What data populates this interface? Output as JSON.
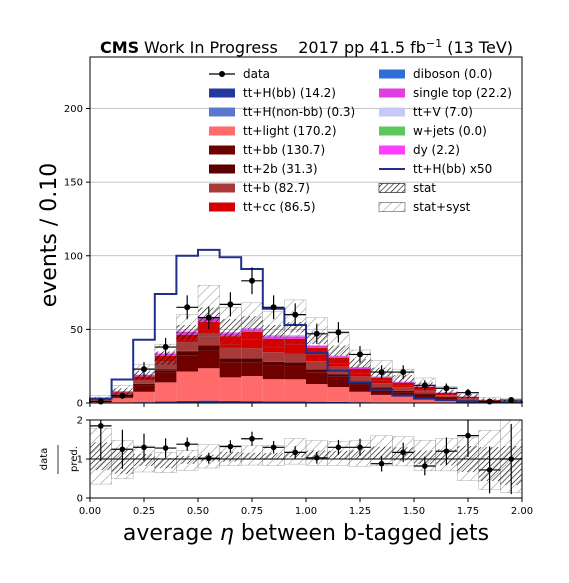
{
  "header": {
    "cms": "CMS",
    "wip": "Work In Progress",
    "lumi_prefix": "2017 pp 41.5 fb",
    "lumi_sup": "−1",
    "lumi_suffix": " (13 TeV)"
  },
  "chart_data": {
    "type": "bar",
    "xlabel_pre": "average ",
    "xlabel_eta": "η",
    "xlabel_post": " between b-tagged jets",
    "ylabel": "events / 0.10",
    "ratio_ylabel_top": "data",
    "ratio_ylabel_bottom": "pred.",
    "xlim": [
      0,
      2
    ],
    "ylim": [
      0,
      235
    ],
    "ratio_ylim": [
      0,
      2
    ],
    "xticks": [
      "0.00",
      "0.25",
      "0.50",
      "0.75",
      "1.00",
      "1.25",
      "1.50",
      "1.75",
      "2.00"
    ],
    "yticks": [
      "0",
      "50",
      "100",
      "150",
      "200"
    ],
    "ratio_yticks": [
      "0",
      "1",
      "2"
    ],
    "bin_edges": [
      0.0,
      0.1,
      0.2,
      0.3,
      0.4,
      0.5,
      0.6,
      0.7,
      0.8,
      0.9,
      1.0,
      1.1,
      1.2,
      1.3,
      1.4,
      1.5,
      1.6,
      1.7,
      1.8,
      1.9,
      2.0
    ],
    "stack": [
      {
        "name": "tt+H(bb) (14.2)",
        "color": "#2339a0",
        "values": [
          0.1,
          0.3,
          0.6,
          1.0,
          1.4,
          1.6,
          1.4,
          1.3,
          1.2,
          1.1,
          0.9,
          0.8,
          0.6,
          0.5,
          0.4,
          0.3,
          0.2,
          0.2,
          0.1,
          0.1
        ]
      },
      {
        "name": "tt+H(non-bb) (0.3)",
        "color": "#5a78d0",
        "values": [
          0,
          0,
          0,
          0,
          0,
          0,
          0,
          0,
          0,
          0,
          0,
          0,
          0,
          0,
          0,
          0,
          0,
          0,
          0,
          0
        ]
      },
      {
        "name": "tt+light (170.2)",
        "color": "#ff6b6b",
        "values": [
          1,
          3,
          7,
          13,
          20,
          22,
          16,
          17,
          15,
          15,
          12,
          10,
          7,
          5,
          4,
          3,
          2,
          1,
          0.5,
          0.3
        ]
      },
      {
        "name": "tt+bb (130.7)",
        "color": "#6e0000",
        "values": [
          0.5,
          1.5,
          4,
          7,
          11,
          12,
          10,
          9,
          9,
          9,
          8,
          7,
          5,
          4,
          3,
          2.5,
          1.5,
          1,
          0.5,
          0.3
        ]
      },
      {
        "name": "tt+2b (31.3)",
        "color": "#5a0000",
        "values": [
          0.2,
          0.5,
          1.5,
          2,
          3,
          3.5,
          3,
          3,
          2.8,
          2.5,
          2,
          1.8,
          1.5,
          1,
          0.8,
          0.6,
          0.4,
          0.2,
          0.1,
          0.1
        ]
      },
      {
        "name": "tt+b (82.7)",
        "color": "#a83a3a",
        "values": [
          0.3,
          1,
          2.5,
          5,
          6,
          8,
          7,
          7,
          6.5,
          6,
          5.5,
          5,
          4,
          3,
          2.5,
          2,
          1.2,
          0.8,
          0.4,
          0.2
        ]
      },
      {
        "name": "tt+cc (86.5)",
        "color": "#d60000",
        "values": [
          0.4,
          1,
          2.5,
          4,
          5,
          8,
          8,
          11,
          9,
          10,
          9,
          6,
          5,
          3.5,
          3,
          2.5,
          1.5,
          1,
          0.5,
          0.3
        ]
      },
      {
        "name": "diboson (0.0)",
        "color": "#2d6fd6",
        "values": [
          0,
          0,
          0,
          0,
          0,
          0,
          0,
          0,
          0,
          0,
          0,
          0,
          0,
          0,
          0,
          0,
          0,
          0,
          0,
          0
        ]
      },
      {
        "name": "single top (22.2)",
        "color": "#e23ce2",
        "values": [
          0.2,
          0.5,
          1,
          1.5,
          2,
          2.5,
          2,
          1.8,
          1.8,
          1.7,
          1.5,
          1.2,
          1,
          0.8,
          0.6,
          0.4,
          0.3,
          0.2,
          0.1,
          0.1
        ]
      },
      {
        "name": "tt+V (7.0)",
        "color": "#c8c8f5",
        "values": [
          0.1,
          0.2,
          0.3,
          0.4,
          0.5,
          0.6,
          0.6,
          0.6,
          0.5,
          0.5,
          0.4,
          0.4,
          0.3,
          0.3,
          0.2,
          0.2,
          0.1,
          0.1,
          0.1,
          0.1
        ]
      },
      {
        "name": "w+jets (0.0)",
        "color": "#5cc85c",
        "values": [
          0,
          0,
          0,
          0,
          0,
          0,
          0,
          0,
          0,
          0,
          0,
          0,
          0,
          0,
          0,
          0,
          0,
          0,
          0,
          0
        ]
      },
      {
        "name": "dy (2.2)",
        "color": "#ff3dff",
        "values": [
          0,
          0.1,
          0.1,
          0.2,
          0.2,
          0.3,
          0.2,
          0.2,
          0.2,
          0.2,
          0.1,
          0.1,
          0.1,
          0.1,
          0.1,
          0,
          0,
          0,
          0,
          0
        ]
      }
    ],
    "signal": {
      "name": "tt+H(bb) x50",
      "color": "#1f2f8c",
      "values": [
        3,
        16,
        43,
        74,
        100,
        104,
        99,
        91,
        64,
        53,
        34,
        22,
        14,
        9,
        5,
        3,
        2,
        1,
        0.5,
        0.3
      ]
    },
    "data_legend": "data",
    "stat_legend": "stat",
    "syst_legend": "stat+syst",
    "stat_band": [
      [
        2,
        4
      ],
      [
        5,
        10
      ],
      [
        16,
        22
      ],
      [
        26,
        35
      ],
      [
        43,
        53
      ],
      [
        55,
        65
      ],
      [
        45,
        57
      ],
      [
        50,
        59
      ],
      [
        45,
        53
      ],
      [
        48,
        55
      ],
      [
        40,
        48
      ],
      [
        32,
        39
      ],
      [
        24,
        30
      ],
      [
        18,
        24
      ],
      [
        14,
        19
      ],
      [
        10,
        14
      ],
      [
        6,
        9
      ],
      [
        3,
        6
      ],
      [
        1,
        3
      ],
      [
        0.5,
        2
      ]
    ],
    "syst_band": [
      [
        1,
        5
      ],
      [
        4,
        12
      ],
      [
        13,
        26
      ],
      [
        22,
        40
      ],
      [
        35,
        60
      ],
      [
        45,
        80
      ],
      [
        40,
        65
      ],
      [
        43,
        68
      ],
      [
        38,
        62
      ],
      [
        40,
        70
      ],
      [
        33,
        58
      ],
      [
        27,
        47
      ],
      [
        20,
        36
      ],
      [
        15,
        29
      ],
      [
        12,
        23
      ],
      [
        8,
        17
      ],
      [
        5,
        11
      ],
      [
        2,
        7
      ],
      [
        0.5,
        4
      ],
      [
        0.2,
        3
      ]
    ],
    "data": {
      "values": [
        1,
        5,
        23,
        38,
        65,
        58,
        67,
        83,
        65,
        60,
        47,
        48,
        33,
        21,
        21,
        12,
        10,
        7,
        1,
        2
      ],
      "errors": [
        1,
        2.2,
        4.8,
        6.2,
        8.1,
        7.6,
        8.2,
        9.1,
        8.1,
        7.7,
        6.9,
        6.9,
        5.7,
        4.6,
        4.6,
        3.5,
        3.2,
        2.6,
        1,
        1.4
      ]
    },
    "ratio": {
      "values": [
        1.85,
        1.25,
        1.3,
        1.28,
        1.38,
        1.02,
        1.32,
        1.52,
        1.3,
        1.17,
        1.03,
        1.3,
        1.3,
        0.88,
        1.17,
        0.82,
        1.2,
        1.6,
        0.72,
        1.0
      ],
      "errors": [
        0.9,
        0.5,
        0.35,
        0.25,
        0.17,
        0.14,
        0.16,
        0.18,
        0.16,
        0.16,
        0.15,
        0.19,
        0.22,
        0.2,
        0.25,
        0.24,
        0.35,
        0.55,
        0.6,
        0.9
      ]
    }
  }
}
